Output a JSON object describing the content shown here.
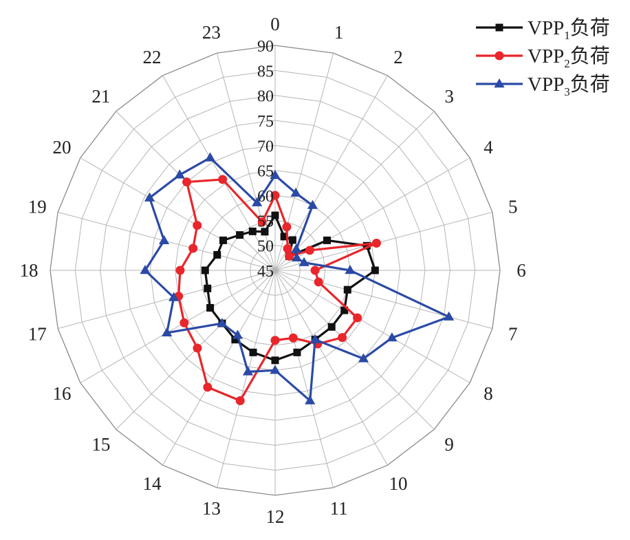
{
  "chart_data": {
    "type": "radar",
    "categories": [
      "0",
      "1",
      "2",
      "3",
      "4",
      "5",
      "6",
      "7",
      "8",
      "9",
      "10",
      "11",
      "12",
      "13",
      "14",
      "15",
      "16",
      "17",
      "18",
      "19",
      "20",
      "21",
      "22",
      "23"
    ],
    "rlim": [
      45,
      90
    ],
    "r_ticks": [
      "45",
      "50",
      "55",
      "60",
      "65",
      "70",
      "75",
      "80",
      "85",
      "90"
    ],
    "grid": true,
    "legend_position": "top-right",
    "series": [
      {
        "name": "VPP1负荷",
        "legend_main": "VPP",
        "legend_sub": "1",
        "legend_suffix": "负荷",
        "color": "#111111",
        "marker": "square",
        "values": [
          56,
          52,
          52,
          49,
          57,
          64,
          65,
          60,
          61,
          61,
          61,
          62,
          63,
          62,
          61,
          60,
          60,
          59,
          59,
          57,
          57,
          55,
          54,
          53
        ]
      },
      {
        "name": "VPP2负荷",
        "legend_main": "VPP",
        "legend_sub": "2",
        "legend_suffix": "负荷",
        "color": "#e8262b",
        "marker": "circle",
        "values": [
          60,
          54,
          50,
          49,
          53,
          66,
          53,
          54,
          64,
          64,
          62,
          59,
          59,
          72,
          72,
          67,
          66,
          65,
          64,
          62,
          63,
          70,
          66,
          55
        ]
      },
      {
        "name": "VPP3负荷",
        "legend_main": "VPP",
        "legend_sub": "3",
        "legend_suffix": "负荷",
        "color": "#2b4aa6",
        "marker": "triangle",
        "values": [
          64,
          61,
          60,
          51,
          50,
          51,
          60,
          81,
          72,
          70,
          61,
          72,
          65,
          66,
          60,
          60,
          70,
          66,
          71,
          68,
          74,
          72,
          71,
          59
        ]
      }
    ]
  }
}
